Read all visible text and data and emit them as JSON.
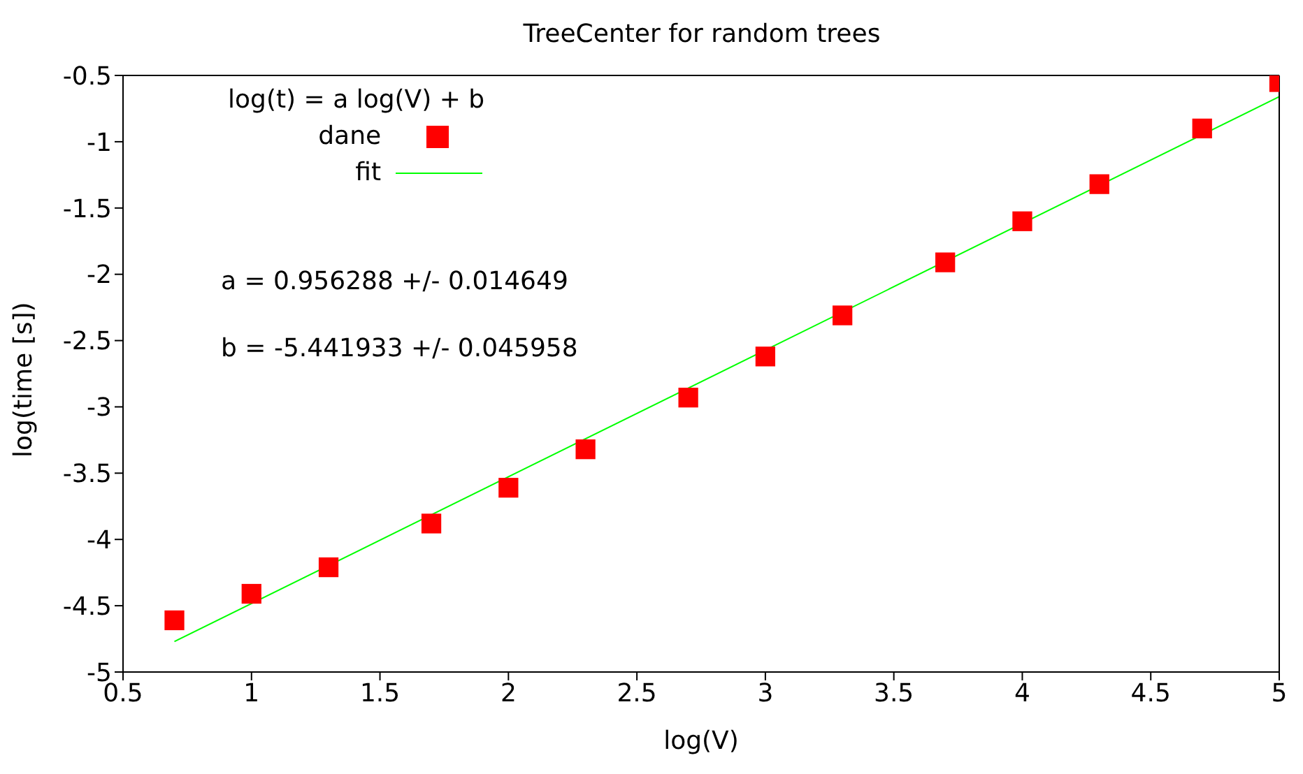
{
  "chart_data": {
    "type": "scatter",
    "title": "TreeCenter for random trees",
    "xlabel": "log(V)",
    "ylabel": "log(time [s])",
    "legend_title": "log(t) = a log(V) + b",
    "annotations": [
      "a = 0.956288 +/- 0.014649",
      "b = -5.441933 +/- 0.045958"
    ],
    "x": [
      0.7,
      1,
      1.3,
      1.7,
      2,
      2.3,
      2.7,
      3,
      3.3,
      3.7,
      4,
      4.3,
      4.7,
      5
    ],
    "series": [
      {
        "name": "dane",
        "color": "#ff0000",
        "marker": "square",
        "values": [
          -4.61,
          -4.41,
          -4.21,
          -3.88,
          -3.61,
          -3.32,
          -2.93,
          -2.62,
          -2.31,
          -1.91,
          -1.6,
          -1.32,
          -0.9,
          -0.55
        ]
      },
      {
        "name": "fit",
        "type": "line",
        "color": "#00ff00",
        "x": [
          0.7,
          5
        ],
        "values": [
          -4.77,
          -0.66
        ],
        "marker": "none",
        "line_style": "solid"
      }
    ],
    "xlim": [
      0.5,
      5
    ],
    "xticks": [
      0.5,
      1,
      1.5,
      2,
      2.5,
      3,
      3.5,
      4,
      4.5,
      5
    ],
    "ylim": [
      -5,
      -0.5
    ],
    "yticks": [
      -5,
      -4.5,
      -4,
      -3.5,
      -3,
      -2.5,
      -2,
      -1.5,
      -1,
      -0.5
    ],
    "grid": false,
    "legend": "top left"
  }
}
